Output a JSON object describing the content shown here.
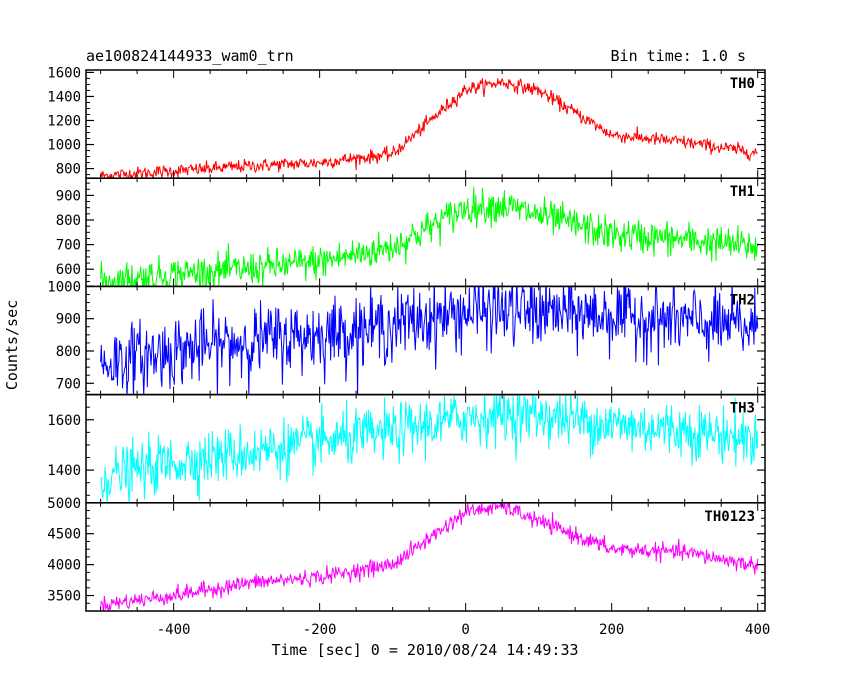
{
  "header": {
    "left_title": "ae100824144933_wam0_trn",
    "right_title": "Bin time: 1.0 s"
  },
  "chart_data": {
    "type": "line",
    "xlabel": "Time [sec] 0 = 2010/08/24 14:49:33",
    "ylabel": "Counts/sec",
    "xlim": [
      -520,
      410
    ],
    "xticks": [
      -400,
      -200,
      0,
      200,
      400
    ],
    "x_knots": [
      -500,
      -400,
      -300,
      -200,
      -100,
      0,
      50,
      100,
      200,
      300,
      400
    ],
    "x_step": 1,
    "grid": false,
    "panels": [
      {
        "name": "TH0",
        "color": "#ff0000",
        "ylim": [
          720,
          1620
        ],
        "yticks": [
          800,
          1000,
          1200,
          1400,
          1600
        ],
        "trend": [
          740,
          780,
          820,
          850,
          920,
          1460,
          1520,
          1450,
          1080,
          1020,
          930
        ],
        "noise": 28
      },
      {
        "name": "TH1",
        "color": "#00ff00",
        "ylim": [
          530,
          970
        ],
        "yticks": [
          600,
          700,
          800,
          900
        ],
        "trend": [
          550,
          580,
          600,
          630,
          690,
          850,
          860,
          820,
          740,
          720,
          690
        ],
        "noise": 35
      },
      {
        "name": "TH2",
        "color": "#0000ff",
        "ylim": [
          665,
          1000
        ],
        "yticks": [
          700,
          800,
          900,
          1000
        ],
        "trend": [
          760,
          800,
          830,
          850,
          880,
          920,
          925,
          920,
          910,
          890,
          870
        ],
        "noise": 55
      },
      {
        "name": "TH3",
        "color": "#00ffff",
        "ylim": [
          1270,
          1700
        ],
        "yticks": [
          1400,
          1600
        ],
        "trend": [
          1370,
          1430,
          1470,
          1510,
          1550,
          1610,
          1620,
          1620,
          1580,
          1560,
          1520
        ],
        "noise": 55
      },
      {
        "name": "TH0123",
        "color": "#ff00ff",
        "ylim": [
          3250,
          5000
        ],
        "yticks": [
          3500,
          4000,
          4500,
          5000
        ],
        "trend": [
          3350,
          3500,
          3700,
          3800,
          4000,
          4850,
          4950,
          4700,
          4250,
          4200,
          3980
        ],
        "noise": 65
      }
    ]
  }
}
